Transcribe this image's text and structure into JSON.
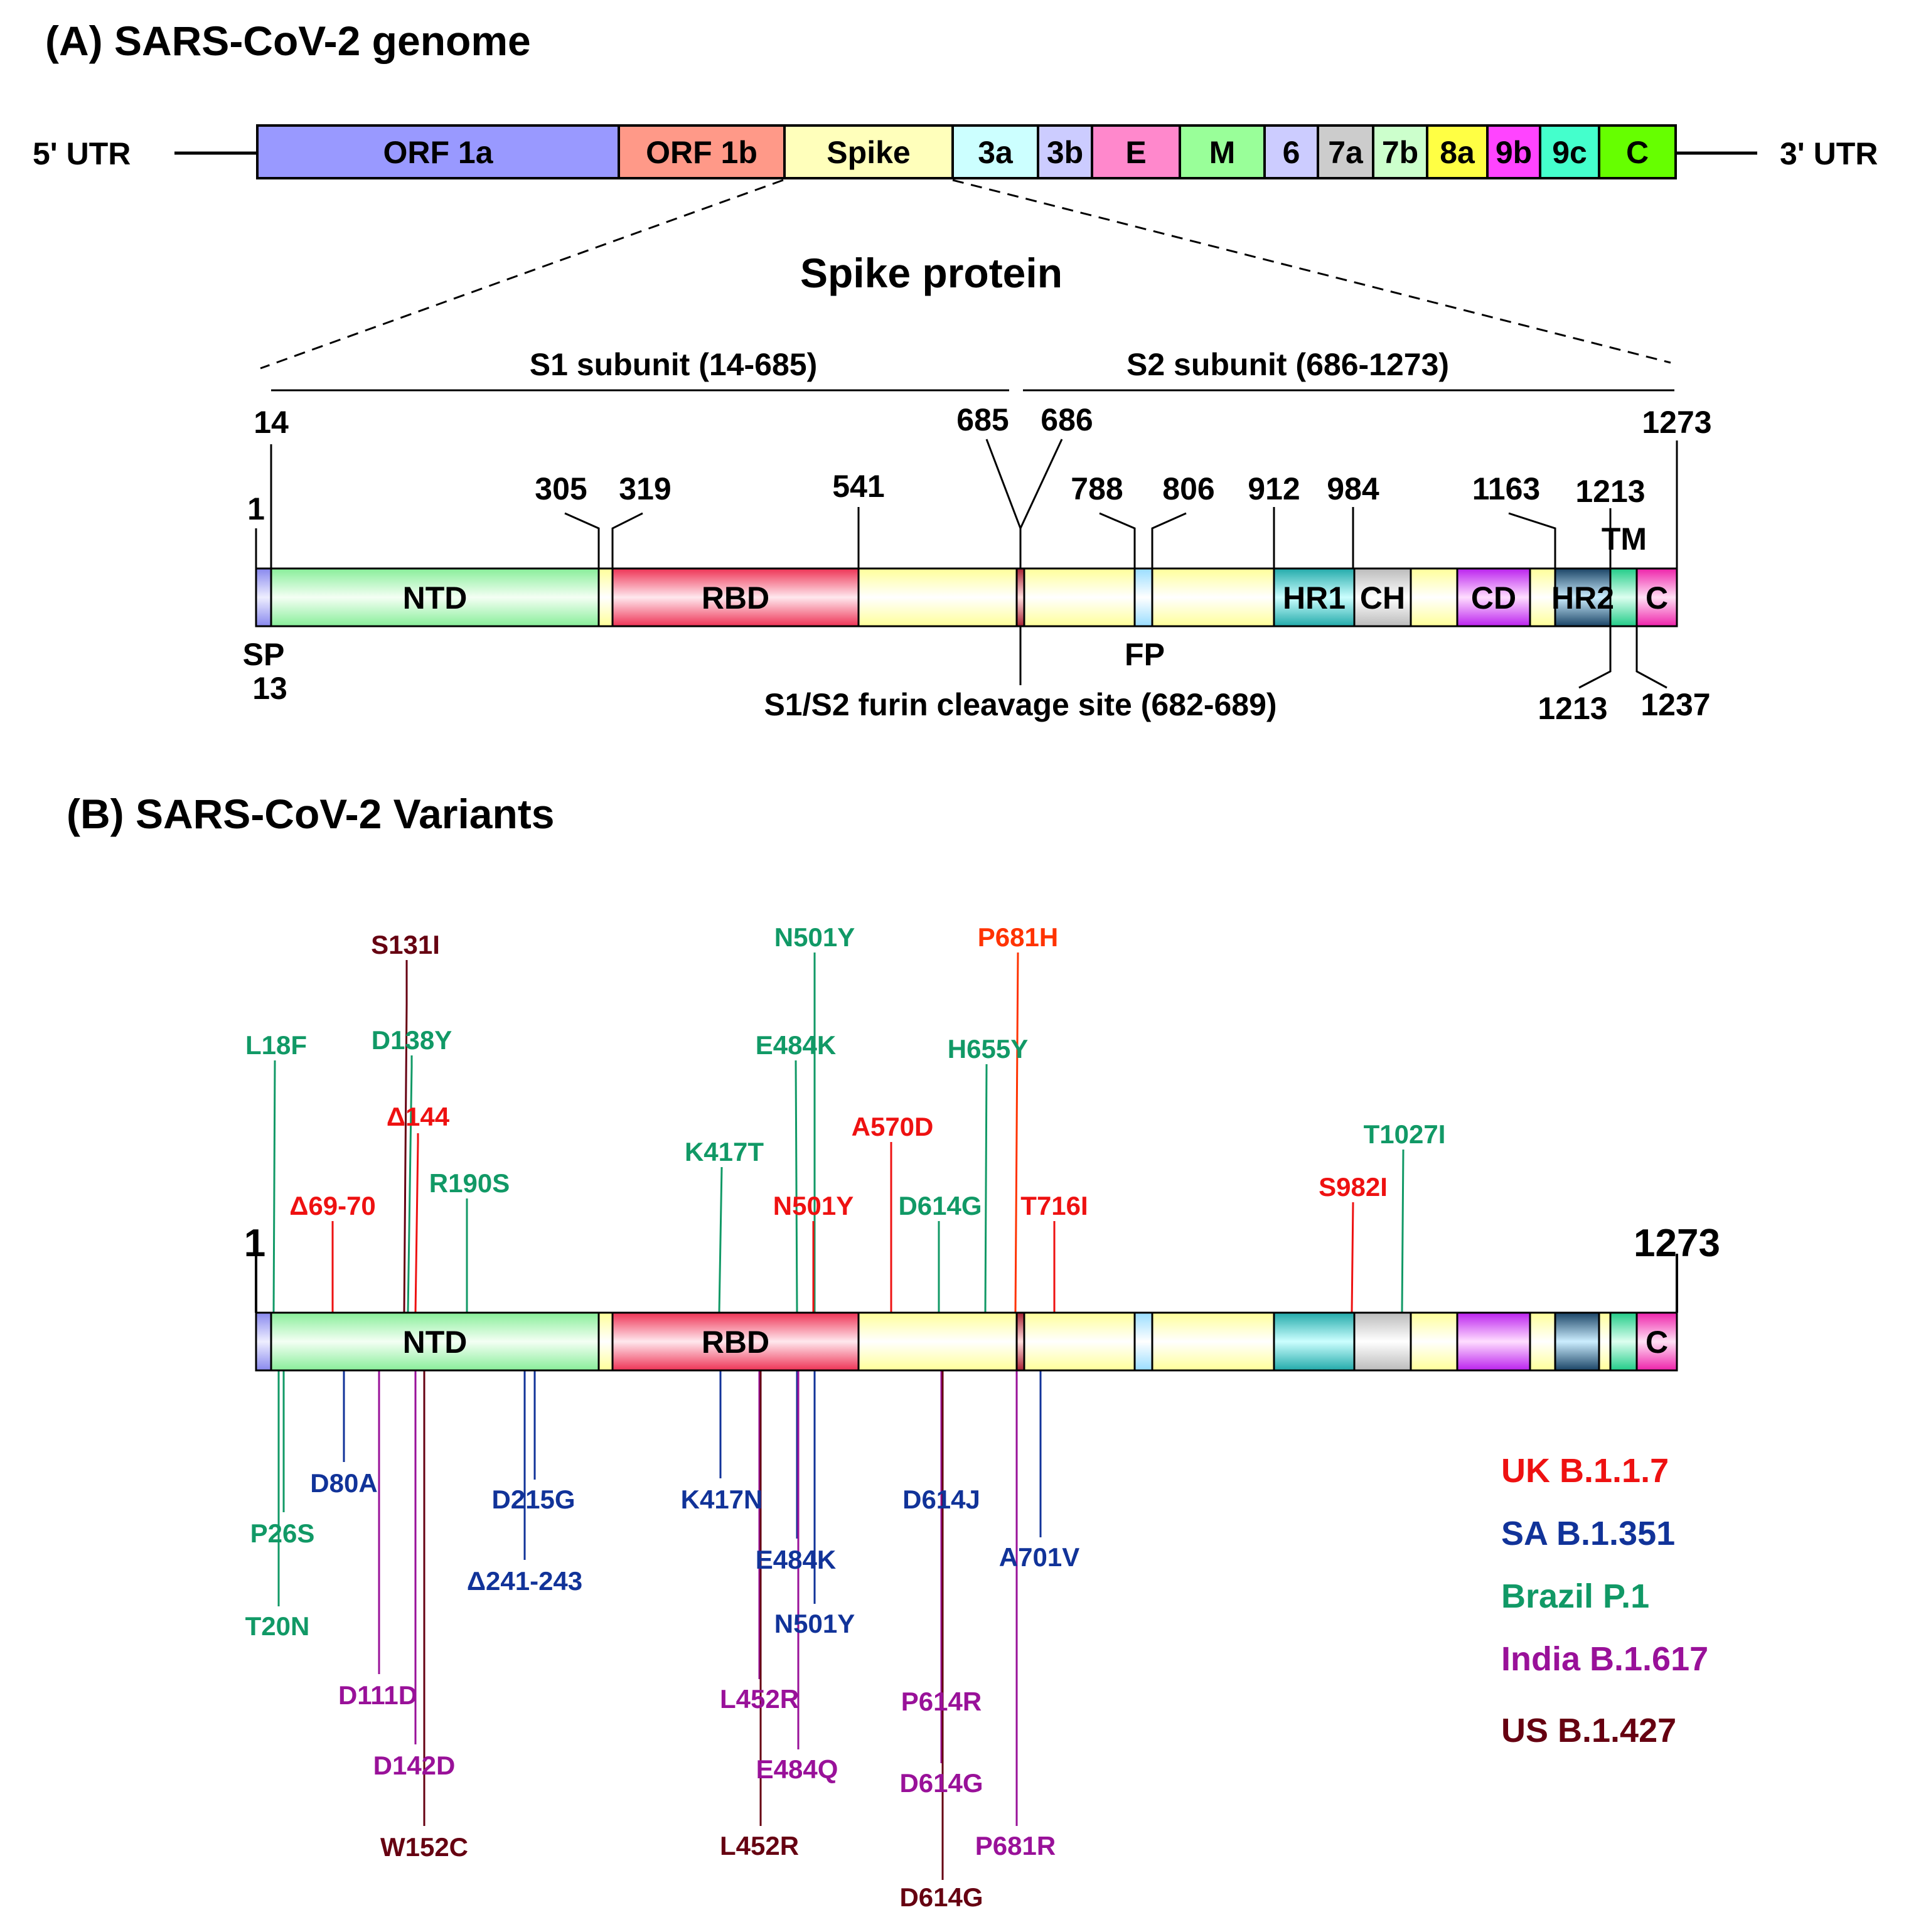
{
  "panel_a": {
    "title": "(A) SARS-CoV-2 genome",
    "utr5": "5' UTR",
    "utr3": "3' UTR",
    "genome_segments": [
      {
        "label": "ORF 1a",
        "color": "#9999ff"
      },
      {
        "label": "ORF 1b",
        "color": "#ff9988"
      },
      {
        "label": "Spike",
        "color": "#ffffbb"
      },
      {
        "label": "3a",
        "color": "#ccffff"
      },
      {
        "label": "3b",
        "color": "#ccccff"
      },
      {
        "label": "E",
        "color": "#ff88cc"
      },
      {
        "label": "M",
        "color": "#99ff99"
      },
      {
        "label": "6",
        "color": "#ccccff"
      },
      {
        "label": "7a",
        "color": "#cccccc"
      },
      {
        "label": "7b",
        "color": "#ccffcc"
      },
      {
        "label": "8a",
        "color": "#ffff44"
      },
      {
        "label": "9b",
        "color": "#ff44ff"
      },
      {
        "label": "9c",
        "color": "#44ffcc"
      },
      {
        "label": "C",
        "color": "#66ff00"
      }
    ],
    "spike_title": "Spike protein",
    "s1_label": "S1 subunit (14-685)",
    "s2_label": "S2 subunit (686-1273)",
    "domains": [
      {
        "label": "NTD",
        "color": "#88ee99"
      },
      {
        "label": "RBD",
        "color": "#ee3355"
      },
      {
        "label": "HR1",
        "color": "#33bbbb"
      },
      {
        "label": "CH",
        "color": "#cccccc"
      },
      {
        "label": "CD",
        "color": "#cc33ee"
      },
      {
        "label": "HR2",
        "color": "#336688"
      },
      {
        "label": "C",
        "color": "#ee33aa"
      }
    ],
    "positions_top": [
      "14",
      "1",
      "305",
      "319",
      "541",
      "685",
      "686",
      "788",
      "806",
      "912",
      "984",
      "1163",
      "1213",
      "1273"
    ],
    "tm_label": "TM",
    "sp_label": "SP",
    "sp_end": "13",
    "fp_label": "FP",
    "furin_label": "S1/S2 furin cleavage site (682-689)",
    "positions_bottom": [
      "1213",
      "1237"
    ]
  },
  "panel_b": {
    "title": "(B) SARS-CoV-2 Variants",
    "start": "1",
    "end": "1273",
    "domains": {
      "ntd": "NTD",
      "rbd": "RBD",
      "c": "C"
    },
    "colors": {
      "uk": "#ee1111",
      "sa": "#113399",
      "brazil": "#119966",
      "india": "#991199",
      "us": "#660011",
      "orange": "#ff3300"
    },
    "mutations_above": [
      {
        "label": "S131I",
        "group": "us"
      },
      {
        "label": "L18F",
        "group": "brazil"
      },
      {
        "label": "D138Y",
        "group": "brazil"
      },
      {
        "label": "Δ144",
        "group": "uk"
      },
      {
        "label": "R190S",
        "group": "brazil"
      },
      {
        "label": "Δ69-70",
        "group": "uk"
      },
      {
        "label": "K417T",
        "group": "brazil"
      },
      {
        "label": "N501Y",
        "group": "brazil"
      },
      {
        "label": "E484K",
        "group": "brazil"
      },
      {
        "label": "N501Y",
        "group": "uk"
      },
      {
        "label": "A570D",
        "group": "uk"
      },
      {
        "label": "P681H",
        "group": "orange"
      },
      {
        "label": "H655Y",
        "group": "brazil"
      },
      {
        "label": "D614G",
        "group": "brazil"
      },
      {
        "label": "T716I",
        "group": "uk"
      },
      {
        "label": "S982I",
        "group": "uk"
      },
      {
        "label": "T1027I",
        "group": "brazil"
      }
    ],
    "mutations_below": [
      {
        "label": "D80A",
        "group": "sa"
      },
      {
        "label": "P26S",
        "group": "brazil"
      },
      {
        "label": "T20N",
        "group": "brazil"
      },
      {
        "label": "D215G",
        "group": "sa"
      },
      {
        "label": "Δ241-243",
        "group": "sa"
      },
      {
        "label": "D111D",
        "group": "india"
      },
      {
        "label": "D142D",
        "group": "india"
      },
      {
        "label": "W152C",
        "group": "us"
      },
      {
        "label": "K417N",
        "group": "sa"
      },
      {
        "label": "E484K",
        "group": "sa"
      },
      {
        "label": "N501Y",
        "group": "sa"
      },
      {
        "label": "L452R",
        "group": "india"
      },
      {
        "label": "E484Q",
        "group": "india"
      },
      {
        "label": "L452R",
        "group": "us"
      },
      {
        "label": "D614J",
        "group": "sa"
      },
      {
        "label": "A701V",
        "group": "sa"
      },
      {
        "label": "P614R",
        "group": "india"
      },
      {
        "label": "D614G",
        "group": "india"
      },
      {
        "label": "P681R",
        "group": "india"
      },
      {
        "label": "D614G",
        "group": "us"
      }
    ],
    "legend": [
      {
        "label": "UK B.1.1.7",
        "group": "uk"
      },
      {
        "label": "SA B.1.351",
        "group": "sa"
      },
      {
        "label": "Brazil P.1",
        "group": "brazil"
      },
      {
        "label": "India B.1.617",
        "group": "india"
      },
      {
        "label": "US B.1.427",
        "group": "us"
      }
    ]
  }
}
